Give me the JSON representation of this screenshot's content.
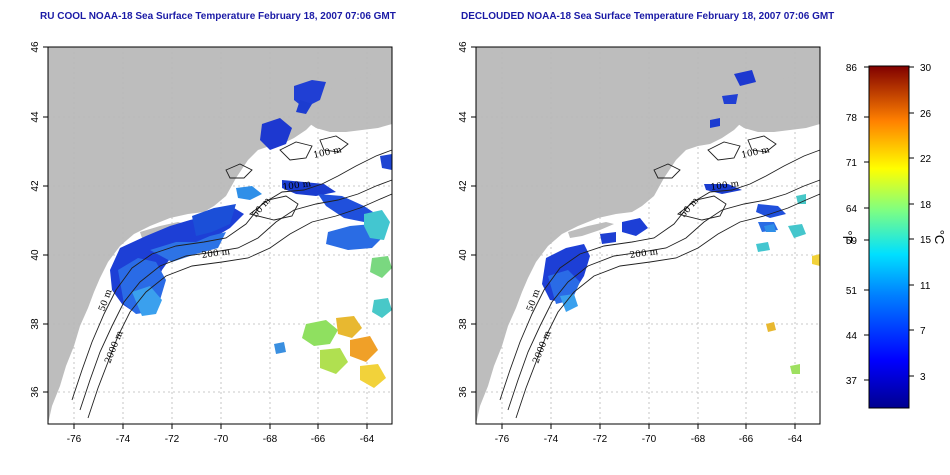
{
  "panels": [
    {
      "title": "RU COOL NOAA-18 Sea Surface Temperature February 18, 2007 07:06 GMT"
    },
    {
      "title": "DECLOUDED NOAA-18 Sea Surface Temperature February 18, 2007 07:06 GMT"
    }
  ],
  "map": {
    "lon_ticks": [
      "-76",
      "-74",
      "-72",
      "-70",
      "-68",
      "-66",
      "-64"
    ],
    "lat_ticks": [
      "46",
      "44",
      "42",
      "40",
      "38",
      "36"
    ],
    "contour_labels": [
      "100 m",
      "100 m",
      "50 m",
      "200 m",
      "50 m",
      "2000 m"
    ]
  },
  "colorbar": {
    "f_ticks": [
      "86",
      "78",
      "71",
      "64",
      "59",
      "51",
      "44",
      "37"
    ],
    "c_ticks": [
      "30",
      "26",
      "22",
      "18",
      "15",
      "11",
      "7",
      "3"
    ],
    "f_label": "°F",
    "c_label": "°C"
  },
  "colors": {
    "land": "#bdbdbd",
    "ocean": "#ffffff",
    "title": "#1a1aa6"
  }
}
